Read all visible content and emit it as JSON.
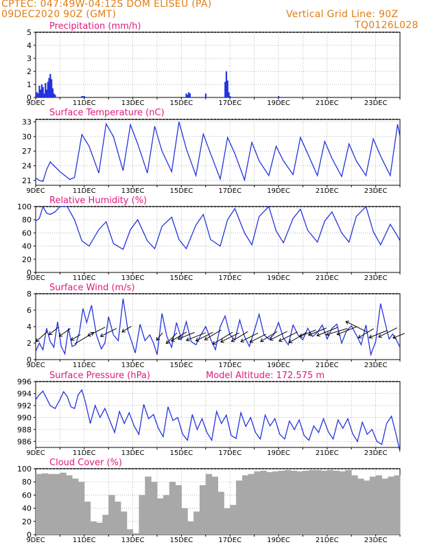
{
  "header": {
    "line1_left": "CPTEC:  047:49W-04:12S  DOM ELISEU (PA)",
    "line2_left": "09DEC2020 90Z (GMT)",
    "line1_right": "Vertical Grid Line: 90Z",
    "line2_right": "TQ0126L028",
    "model_altitude": "Model Altitude: 172.575 m"
  },
  "colors": {
    "header": "#e07d14",
    "panel_title": "#e0187d",
    "line": "#2233dd",
    "cloud": "#a8a8a8",
    "wind_arrow": "#000000"
  },
  "chart_data": [
    {
      "type": "bar",
      "id": "precip",
      "title": "Precipitation (mm/h)",
      "ylim": [
        0,
        5
      ],
      "yticks": [
        0,
        1,
        2,
        3,
        4,
        5
      ],
      "x_ticks": [
        "9DEC",
        "11DEC",
        "13DEC",
        "15DEC",
        "17DEC",
        "19DEC",
        "21DEC",
        "23DEC"
      ],
      "xlim_days": [
        9,
        24
      ],
      "x": [
        9.05,
        9.1,
        9.15,
        9.2,
        9.25,
        9.3,
        9.35,
        9.4,
        9.45,
        9.5,
        9.55,
        9.6,
        9.65,
        9.7,
        9.75,
        9.8,
        10.9,
        10.95,
        11.0,
        15.2,
        15.25,
        15.3,
        15.35,
        16.0,
        16.8,
        16.85,
        16.9,
        16.95,
        17.0,
        19.0
      ],
      "values": [
        0.4,
        0.3,
        0.9,
        0.6,
        1.0,
        0.8,
        0.3,
        1.1,
        0.6,
        1.2,
        1.5,
        1.8,
        1.4,
        0.7,
        0.3,
        0.2,
        0.1,
        0.1,
        0.1,
        0.3,
        0.2,
        0.4,
        0.3,
        0.3,
        1.2,
        2.0,
        1.3,
        0.4,
        0.1,
        0.1
      ]
    },
    {
      "type": "line",
      "id": "temp",
      "title": "Surface Temperature (nC)",
      "ylim": [
        20,
        33.5
      ],
      "yticks": [
        21,
        24,
        27,
        30,
        33
      ],
      "x_ticks": [
        "9DEC",
        "11DEC",
        "13DEC",
        "15DEC",
        "17DEC",
        "19DEC",
        "21DEC",
        "23DEC"
      ],
      "xlim_days": [
        9,
        24
      ],
      "x": [
        9.0,
        9.15,
        9.3,
        9.45,
        9.6,
        9.8,
        10.0,
        10.2,
        10.4,
        10.6,
        10.9,
        11.2,
        11.6,
        11.9,
        12.2,
        12.6,
        12.9,
        13.2,
        13.6,
        13.9,
        14.2,
        14.6,
        14.9,
        15.2,
        15.6,
        15.9,
        16.2,
        16.6,
        16.9,
        17.2,
        17.6,
        17.9,
        18.2,
        18.6,
        18.9,
        19.2,
        19.6,
        19.9,
        20.2,
        20.6,
        20.9,
        21.2,
        21.6,
        21.9,
        22.2,
        22.6,
        22.9,
        23.2,
        23.6,
        23.9,
        24.0
      ],
      "values": [
        21.5,
        21.0,
        20.8,
        23.2,
        24.8,
        23.8,
        22.8,
        22.0,
        21.2,
        21.6,
        30.4,
        28.0,
        22.5,
        32.6,
        30.0,
        23.0,
        32.4,
        28.5,
        22.5,
        32.1,
        27.0,
        22.8,
        33.0,
        27.5,
        22.0,
        30.5,
        26.5,
        21.3,
        29.8,
        26.5,
        21.1,
        28.8,
        25.0,
        22.0,
        28.0,
        25.0,
        22.2,
        29.8,
        26.5,
        22.0,
        29.0,
        25.5,
        21.8,
        28.5,
        25.0,
        22.0,
        29.5,
        26.0,
        22.0,
        32.5,
        30.0
      ]
    },
    {
      "type": "line",
      "id": "humidity",
      "title": "Relative Humidity (%)",
      "ylim": [
        0,
        100
      ],
      "yticks": [
        0,
        20,
        40,
        60,
        80,
        100
      ],
      "x_ticks": [
        "9DEC",
        "11DEC",
        "13DEC",
        "15DEC",
        "17DEC",
        "19DEC",
        "21DEC",
        "23DEC"
      ],
      "xlim_days": [
        9,
        24
      ],
      "x": [
        9.0,
        9.15,
        9.3,
        9.45,
        9.6,
        9.8,
        10.0,
        10.3,
        10.6,
        10.9,
        11.2,
        11.6,
        11.9,
        12.2,
        12.6,
        12.9,
        13.2,
        13.6,
        13.9,
        14.2,
        14.6,
        14.9,
        15.2,
        15.6,
        15.9,
        16.2,
        16.6,
        16.9,
        17.2,
        17.6,
        17.9,
        18.2,
        18.6,
        18.9,
        19.2,
        19.6,
        19.9,
        20.2,
        20.6,
        20.9,
        21.2,
        21.6,
        21.9,
        22.2,
        22.6,
        22.9,
        23.2,
        23.6,
        23.9,
        24.0
      ],
      "values": [
        78,
        82,
        100,
        90,
        88,
        92,
        100,
        100,
        80,
        48,
        40,
        65,
        77,
        44,
        35,
        65,
        80,
        48,
        36,
        70,
        84,
        50,
        36,
        72,
        88,
        50,
        40,
        80,
        97,
        60,
        42,
        85,
        100,
        63,
        45,
        82,
        96,
        64,
        46,
        78,
        92,
        60,
        46,
        85,
        100,
        62,
        42,
        73,
        55,
        48
      ]
    },
    {
      "type": "line",
      "id": "wind",
      "title": "Surface Wind (m/s)",
      "ylim": [
        0,
        8
      ],
      "yticks": [
        0,
        2,
        4,
        6,
        8
      ],
      "x_ticks": [
        "9DEC",
        "11DEC",
        "13DEC",
        "15DEC",
        "17DEC",
        "19DEC",
        "21DEC",
        "23DEC"
      ],
      "xlim_days": [
        9,
        24
      ],
      "x": [
        9.0,
        9.15,
        9.3,
        9.45,
        9.6,
        9.75,
        9.9,
        10.05,
        10.2,
        10.35,
        10.5,
        10.65,
        10.8,
        10.95,
        11.1,
        11.3,
        11.5,
        11.7,
        11.85,
        12.0,
        12.2,
        12.4,
        12.6,
        12.8,
        12.95,
        13.1,
        13.3,
        13.5,
        13.7,
        13.85,
        14.0,
        14.2,
        14.4,
        14.6,
        14.8,
        15.0,
        15.2,
        15.4,
        15.6,
        15.8,
        16.0,
        16.2,
        16.4,
        16.6,
        16.8,
        17.0,
        17.2,
        17.4,
        17.6,
        17.8,
        18.0,
        18.2,
        18.4,
        18.6,
        18.8,
        19.0,
        19.2,
        19.4,
        19.6,
        19.8,
        20.0,
        20.2,
        20.4,
        20.6,
        20.8,
        21.0,
        21.2,
        21.4,
        21.6,
        21.8,
        22.0,
        22.2,
        22.4,
        22.6,
        22.8,
        23.0,
        23.2,
        23.4,
        23.55,
        23.7,
        23.85,
        24.0
      ],
      "values": [
        1.0,
        2.0,
        1.2,
        3.8,
        2.2,
        1.5,
        4.6,
        1.6,
        0.7,
        3.8,
        1.6,
        1.8,
        3.3,
        6.2,
        4.5,
        6.6,
        3.0,
        1.3,
        2.0,
        5.2,
        3.0,
        2.3,
        7.4,
        3.5,
        2.2,
        0.8,
        4.3,
        2.3,
        3.0,
        2.0,
        0.6,
        5.6,
        2.8,
        1.5,
        4.5,
        2.5,
        4.6,
        2.2,
        1.8,
        3.0,
        4.0,
        2.5,
        1.2,
        4.0,
        5.3,
        3.0,
        2.4,
        4.8,
        2.8,
        1.6,
        3.5,
        5.5,
        3.0,
        2.5,
        3.0,
        4.5,
        2.6,
        1.8,
        4.2,
        3.0,
        2.4,
        3.8,
        2.8,
        3.3,
        4.2,
        2.5,
        3.8,
        4.3,
        2.0,
        3.5,
        4.1,
        3.0,
        1.8,
        4.2,
        0.6,
        2.2,
        6.8,
        4.3,
        2.5,
        3.1,
        2.4,
        1.5
      ]
    },
    {
      "type": "line",
      "id": "pressure",
      "title": "Surface Pressure (hPa)",
      "ylim": [
        985,
        996
      ],
      "yticks": [
        986,
        988,
        990,
        992,
        994,
        996
      ],
      "x_ticks": [
        "9DEC",
        "11DEC",
        "13DEC",
        "15DEC",
        "17DEC",
        "19DEC",
        "21DEC",
        "23DEC"
      ],
      "xlim_days": [
        9,
        24
      ],
      "x": [
        9.0,
        9.15,
        9.3,
        9.45,
        9.6,
        9.8,
        10.0,
        10.15,
        10.3,
        10.45,
        10.6,
        10.75,
        10.9,
        11.05,
        11.25,
        11.45,
        11.65,
        11.85,
        12.05,
        12.25,
        12.45,
        12.65,
        12.85,
        13.05,
        13.25,
        13.45,
        13.65,
        13.85,
        14.05,
        14.25,
        14.45,
        14.65,
        14.85,
        15.05,
        15.25,
        15.45,
        15.65,
        15.85,
        16.05,
        16.25,
        16.45,
        16.65,
        16.85,
        17.05,
        17.25,
        17.45,
        17.65,
        17.85,
        18.05,
        18.25,
        18.45,
        18.65,
        18.85,
        19.05,
        19.25,
        19.45,
        19.65,
        19.85,
        20.05,
        20.25,
        20.45,
        20.65,
        20.85,
        21.05,
        21.25,
        21.45,
        21.65,
        21.85,
        22.05,
        22.25,
        22.45,
        22.65,
        22.85,
        23.05,
        23.25,
        23.45,
        23.65,
        23.85,
        24.0
      ],
      "values": [
        993.0,
        993.8,
        994.4,
        993.2,
        992.0,
        991.5,
        993.0,
        994.3,
        993.5,
        991.8,
        991.5,
        993.8,
        994.6,
        992.5,
        989.0,
        992.0,
        990.0,
        991.5,
        989.5,
        987.5,
        991.0,
        989.0,
        990.8,
        988.6,
        987.2,
        992.2,
        989.8,
        990.5,
        988.2,
        986.8,
        991.8,
        989.5,
        990.0,
        987.2,
        986.2,
        990.5,
        988.0,
        989.8,
        987.5,
        986.2,
        991.0,
        989.0,
        990.4,
        987.0,
        986.5,
        990.8,
        988.5,
        990.0,
        987.5,
        986.4,
        990.4,
        988.6,
        989.8,
        987.2,
        986.4,
        989.4,
        988.0,
        989.6,
        987.0,
        986.2,
        988.6,
        987.5,
        989.8,
        987.6,
        986.4,
        989.6,
        988.2,
        989.8,
        987.3,
        986.0,
        989.2,
        987.2,
        988.0,
        986.0,
        985.5,
        989.0,
        990.2,
        987.0,
        984.3
      ]
    },
    {
      "type": "bar",
      "id": "cloud",
      "title": "Cloud Cover (%)",
      "ylim": [
        0,
        100
      ],
      "yticks": [
        0,
        20,
        40,
        60,
        80,
        100
      ],
      "x_ticks": [
        "9DEC",
        "11DEC",
        "13DEC",
        "15DEC",
        "17DEC",
        "19DEC",
        "21DEC",
        "23DEC"
      ],
      "xlim_days": [
        9,
        24
      ],
      "x": [
        9.0,
        9.25,
        9.5,
        9.75,
        10.0,
        10.25,
        10.5,
        10.75,
        11.0,
        11.25,
        11.5,
        11.75,
        12.0,
        12.25,
        12.5,
        12.75,
        13.0,
        13.25,
        13.5,
        13.75,
        14.0,
        14.25,
        14.5,
        14.75,
        15.0,
        15.25,
        15.5,
        15.75,
        16.0,
        16.25,
        16.5,
        16.75,
        17.0,
        17.25,
        17.5,
        17.75,
        18.0,
        18.25,
        18.5,
        18.75,
        19.0,
        19.25,
        19.5,
        19.75,
        20.0,
        20.25,
        20.5,
        20.75,
        21.0,
        21.25,
        21.5,
        21.75,
        22.0,
        22.25,
        22.5,
        22.75,
        23.0,
        23.25,
        23.5,
        23.75
      ],
      "values": [
        92,
        93,
        92,
        92,
        94,
        90,
        85,
        80,
        50,
        20,
        18,
        30,
        60,
        50,
        35,
        8,
        2,
        60,
        88,
        80,
        55,
        60,
        80,
        75,
        40,
        20,
        35,
        75,
        92,
        88,
        65,
        40,
        45,
        82,
        90,
        92,
        96,
        97,
        95,
        96,
        97,
        98,
        97,
        96,
        97,
        98,
        98,
        97,
        98,
        97,
        96,
        98,
        90,
        85,
        82,
        88,
        90,
        85,
        88,
        90
      ]
    }
  ],
  "wind_arrows": {
    "x": [
      9.25,
      9.75,
      10.2,
      10.65,
      11.0,
      11.5,
      12.0,
      12.75,
      14.1,
      14.6,
      14.9,
      15.2,
      15.6,
      15.95,
      16.3,
      16.7,
      17.0,
      17.4,
      17.8,
      18.15,
      18.6,
      19.0,
      19.4,
      19.8,
      20.2,
      20.6,
      21.0,
      21.4,
      21.8,
      22.2,
      22.6,
      23.1,
      23.5,
      23.95
    ],
    "y": [
      2.8,
      3.5,
      3.3,
      2.7,
      2.6,
      3.4,
      3.3,
      3.7,
      2.8,
      2.6,
      2.8,
      2.9,
      2.8,
      2.8,
      3.0,
      2.6,
      2.7,
      2.8,
      2.7,
      2.6,
      2.8,
      2.9,
      2.8,
      2.7,
      3.2,
      3.4,
      3.4,
      3.4,
      3.5,
      4.0,
      3.2,
      3.1,
      3.3,
      2.9
    ],
    "u": [
      -1,
      -1,
      -1,
      -1,
      1,
      -1,
      -1,
      -1,
      -0.8,
      -0.9,
      -1,
      -1,
      -1,
      -1,
      -1,
      -1,
      -1,
      -1,
      -1,
      -1,
      -1,
      -1,
      -1,
      -1,
      -1,
      -1,
      -1,
      -1,
      -1,
      -1,
      -1,
      -1,
      -1,
      -1
    ],
    "v": [
      -0.9,
      -0.8,
      -0.7,
      -0.6,
      0.6,
      -0.5,
      -0.5,
      -0.6,
      -1,
      -0.9,
      -0.6,
      -0.4,
      -0.4,
      -0.5,
      -0.6,
      -0.6,
      -0.5,
      -0.6,
      -0.5,
      -0.5,
      -0.6,
      -0.5,
      -0.5,
      -0.6,
      -0.4,
      -0.4,
      -0.4,
      -0.3,
      -0.4,
      0.5,
      -0.6,
      -0.4,
      -0.5,
      -0.4
    ],
    "len": [
      22,
      18,
      20,
      16,
      32,
      28,
      26,
      16,
      14,
      22,
      26,
      26,
      30,
      28,
      28,
      34,
      30,
      28,
      28,
      26,
      28,
      28,
      30,
      30,
      26,
      28,
      32,
      32,
      30,
      34,
      26,
      28,
      30,
      18
    ]
  }
}
